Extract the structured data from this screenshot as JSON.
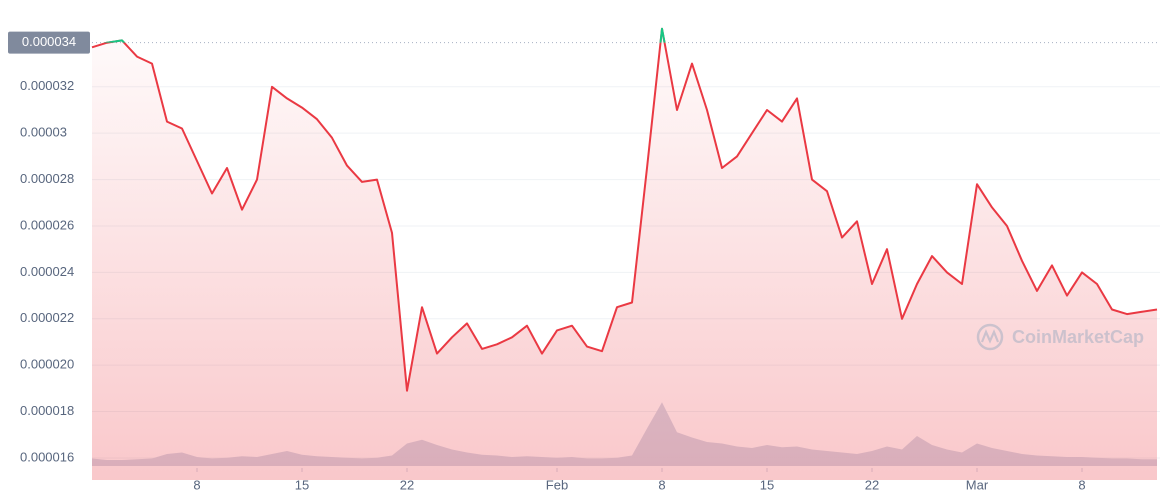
{
  "chart_data": {
    "type": "line",
    "x": [
      0,
      1,
      2,
      3,
      4,
      5,
      6,
      7,
      8,
      9,
      10,
      11,
      12,
      13,
      14,
      15,
      16,
      17,
      18,
      19,
      20,
      21,
      22,
      23,
      24,
      25,
      26,
      27,
      28,
      29,
      30,
      31,
      32,
      33,
      34,
      35,
      36,
      37,
      38,
      39,
      40,
      41,
      42,
      43,
      44,
      45,
      46,
      47,
      48,
      49,
      50,
      51,
      52,
      53,
      54,
      55,
      56,
      57,
      58,
      59,
      60,
      61,
      62,
      63,
      64,
      65,
      66,
      67,
      68,
      69,
      70,
      71
    ],
    "series": [
      {
        "color": "#ea3943",
        "up_color": "#16c784",
        "values": [
          3.37e-05,
          3.39e-05,
          3.4e-05,
          3.33e-05,
          3.3e-05,
          3.05e-05,
          3.02e-05,
          2.88e-05,
          2.74e-05,
          2.85e-05,
          2.67e-05,
          2.8e-05,
          3.2e-05,
          3.15e-05,
          3.11e-05,
          3.06e-05,
          2.98e-05,
          2.86e-05,
          2.79e-05,
          2.8e-05,
          2.57e-05,
          1.89e-05,
          2.25e-05,
          2.05e-05,
          2.12e-05,
          2.18e-05,
          2.07e-05,
          2.09e-05,
          2.12e-05,
          2.17e-05,
          2.05e-05,
          2.15e-05,
          2.17e-05,
          2.08e-05,
          2.06e-05,
          2.25e-05,
          2.27e-05,
          2.85e-05,
          3.45e-05,
          3.1e-05,
          3.3e-05,
          3.1e-05,
          2.85e-05,
          2.9e-05,
          3e-05,
          3.1e-05,
          3.05e-05,
          3.15e-05,
          2.8e-05,
          2.75e-05,
          2.55e-05,
          2.62e-05,
          2.35e-05,
          2.5e-05,
          2.2e-05,
          2.35e-05,
          2.47e-05,
          2.4e-05,
          2.35e-05,
          2.78e-05,
          2.68e-05,
          2.6e-05,
          2.45e-05,
          2.32e-05,
          2.43e-05,
          2.3e-05,
          2.4e-05,
          2.35e-05,
          2.24e-05,
          2.22e-05,
          2.23e-05,
          2.24e-05
        ]
      }
    ],
    "volume": {
      "color": "#cfd6e4",
      "values": [
        10,
        8,
        8,
        9,
        10,
        16,
        18,
        12,
        10,
        11,
        13,
        12,
        16,
        20,
        15,
        13,
        12,
        11,
        10,
        11,
        14,
        30,
        35,
        28,
        22,
        18,
        15,
        14,
        12,
        13,
        12,
        11,
        12,
        10,
        10,
        11,
        14,
        50,
        85,
        45,
        38,
        32,
        30,
        26,
        24,
        28,
        25,
        26,
        22,
        20,
        18,
        16,
        20,
        26,
        22,
        40,
        28,
        22,
        18,
        30,
        24,
        20,
        16,
        14,
        13,
        12,
        12,
        11,
        10,
        10,
        9,
        9
      ]
    },
    "vlim": [
      0,
      100
    ],
    "xlim": [
      0,
      71.2
    ],
    "xticks": [
      {
        "value": 7,
        "label": "8"
      },
      {
        "value": 14,
        "label": "15"
      },
      {
        "value": 21,
        "label": "22"
      },
      {
        "value": 31,
        "label": "Feb"
      },
      {
        "value": 38,
        "label": "8"
      },
      {
        "value": 45,
        "label": "15"
      },
      {
        "value": 52,
        "label": "22"
      },
      {
        "value": 59,
        "label": "Mar"
      },
      {
        "value": 66,
        "label": "8"
      }
    ],
    "ylim": [
      1.505e-05,
      3.574e-05
    ],
    "yticks": [
      1.6e-05,
      1.8e-05,
      {
        "value": 2e-05,
        "label": "0.000020"
      },
      2.2e-05,
      2.4e-05,
      2.6e-05,
      2.8e-05,
      3e-05,
      3.2e-05
    ],
    "grid": true,
    "reference_line": {
      "value": 3.39e-05,
      "label": "0.000034"
    },
    "watermark": "CoinMarketCap"
  }
}
